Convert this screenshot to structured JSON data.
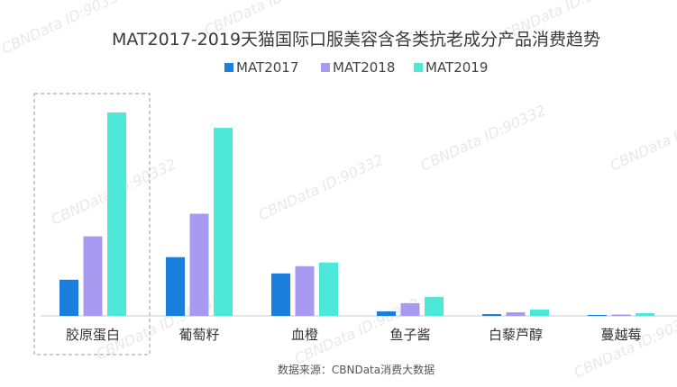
{
  "chart_data": {
    "type": "bar",
    "title": "MAT2017-2019天猫国际口服美容含各类抗老成分产品消费趋势",
    "categories": [
      "胶原蛋白",
      "葡萄籽",
      "血橙",
      "鱼子酱",
      "白藜芦醇",
      "蔓越莓"
    ],
    "series": [
      {
        "name": "MAT2017",
        "color": "#1a7fdc",
        "values": [
          40,
          65,
          47,
          5,
          2,
          0
        ]
      },
      {
        "name": "MAT2018",
        "color": "#a89af0",
        "values": [
          88,
          113,
          55,
          14,
          4,
          1
        ]
      },
      {
        "name": "MAT2019",
        "color": "#4de8d8",
        "values": [
          225,
          208,
          59,
          21,
          7,
          3
        ]
      }
    ],
    "ylim": [
      0,
      230
    ],
    "xlabel": "",
    "ylabel": "",
    "grid": false,
    "legend_position": "top-center",
    "highlighted_category": "胶原蛋白",
    "source": "数据来源：CBNData消费大数据"
  },
  "watermark": "CBNData ID:90332"
}
